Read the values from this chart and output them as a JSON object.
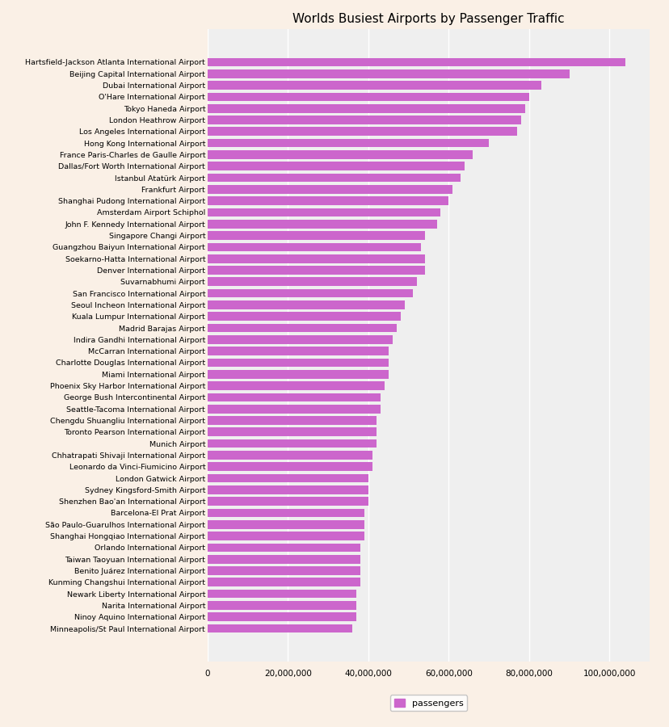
{
  "title": "Worlds Busiest Airports by Passenger Traffic",
  "bar_color": "#CC66CC",
  "background_color": "#FAF0E6",
  "plot_bg_color": "#EFEFEF",
  "legend_label": "passengers",
  "airports": [
    "Hartsfield-Jackson Atlanta International Airport",
    "Beijing Capital International Airport",
    "Dubai International Airport",
    "O'Hare International Airport",
    "Tokyo Haneda Airport",
    "London Heathrow Airport",
    "Los Angeles International Airport",
    "Hong Kong International Airport",
    "France Paris-Charles de Gaulle Airport",
    "Dallas/Fort Worth International Airport",
    "Istanbul Atatürk Airport",
    "Frankfurt Airport",
    "Shanghai Pudong International Airport",
    "Amsterdam Airport Schiphol",
    "John F. Kennedy International Airport",
    "Singapore Changi Airport",
    "Guangzhou Baiyun International Airport",
    "Soekarno-Hatta International Airport",
    "Denver International Airport",
    "Suvarnabhumi Airport",
    "San Francisco International Airport",
    "Seoul Incheon International Airport",
    "Kuala Lumpur International Airport",
    "Madrid Barajas Airport",
    "Indira Gandhi International Airport",
    "McCarran International Airport",
    "Charlotte Douglas International Airport",
    "Miami International Airport",
    "Phoenix Sky Harbor International Airport",
    "George Bush Intercontinental Airport",
    "Seattle-Tacoma International Airport",
    "Chengdu Shuangliu International Airport",
    "Toronto Pearson International Airport",
    "Munich Airport",
    "Chhatrapati Shivaji International Airport",
    "Leonardo da Vinci-Fiumicino Airport",
    "London Gatwick Airport",
    "Sydney Kingsford-Smith Airport",
    "Shenzhen Bao'an International Airport",
    "Barcelona-El Prat Airport",
    "São Paulo-Guarulhos International Airport",
    "Shanghai Hongqiao International Airport",
    "Orlando International Airport",
    "Taiwan Taoyuan International Airport",
    "Benito Juárez International Airport",
    "Kunming Changshui International Airport",
    "Newark Liberty International Airport",
    "Narita International Airport",
    "Ninoy Aquino International Airport",
    "Minneapolis/St Paul International Airport"
  ],
  "values": [
    104000000,
    90000000,
    83000000,
    80000000,
    79000000,
    78000000,
    77000000,
    70000000,
    66000000,
    64000000,
    63000000,
    61000000,
    60000000,
    58000000,
    57000000,
    54000000,
    53000000,
    54000000,
    54000000,
    52000000,
    51000000,
    49000000,
    48000000,
    47000000,
    46000000,
    45000000,
    45000000,
    45000000,
    44000000,
    43000000,
    43000000,
    42000000,
    42000000,
    42000000,
    41000000,
    41000000,
    40000000,
    40000000,
    40000000,
    39000000,
    39000000,
    39000000,
    38000000,
    38000000,
    38000000,
    38000000,
    37000000,
    37000000,
    37000000,
    36000000
  ],
  "figsize": [
    8.29,
    9.0
  ],
  "dpi": 100
}
